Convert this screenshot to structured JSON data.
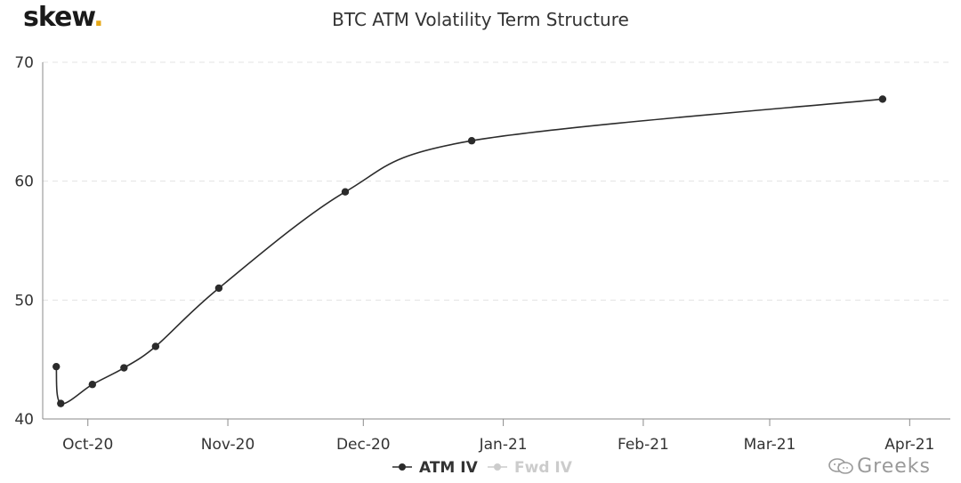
{
  "brand": {
    "name": "skew",
    "dot": "."
  },
  "chart_data": {
    "type": "line",
    "title": "BTC ATM Volatility Term Structure",
    "xlabel": "",
    "ylabel": "",
    "ylim": [
      40,
      70
    ],
    "yticks": [
      40,
      50,
      60,
      70
    ],
    "xlim": [
      "2020-09-21",
      "2021-04-10"
    ],
    "xticks": [
      {
        "date": "2020-10-01",
        "label": "Oct-20"
      },
      {
        "date": "2020-11-01",
        "label": "Nov-20"
      },
      {
        "date": "2020-12-01",
        "label": "Dec-20"
      },
      {
        "date": "2021-01-01",
        "label": "Jan-21"
      },
      {
        "date": "2021-02-01",
        "label": "Feb-21"
      },
      {
        "date": "2021-03-01",
        "label": "Mar-21"
      },
      {
        "date": "2021-04-01",
        "label": "Apr-21"
      }
    ],
    "grid": "horizontal-dashed",
    "legend_position": "bottom-center",
    "series": [
      {
        "name": "ATM IV",
        "color": "#2b2b2b",
        "active": true,
        "points": [
          {
            "x": "2020-09-24",
            "y": 44.4
          },
          {
            "x": "2020-09-25",
            "y": 41.3
          },
          {
            "x": "2020-10-02",
            "y": 42.9
          },
          {
            "x": "2020-10-09",
            "y": 44.3
          },
          {
            "x": "2020-10-16",
            "y": 46.1
          },
          {
            "x": "2020-10-30",
            "y": 51.0
          },
          {
            "x": "2020-11-27",
            "y": 59.1
          },
          {
            "x": "2020-12-25",
            "y": 63.4
          },
          {
            "x": "2021-03-26",
            "y": 66.9
          }
        ]
      },
      {
        "name": "Fwd IV",
        "color": "#cccccc",
        "active": false,
        "points": []
      }
    ]
  },
  "watermark": {
    "text": "Greeks"
  }
}
